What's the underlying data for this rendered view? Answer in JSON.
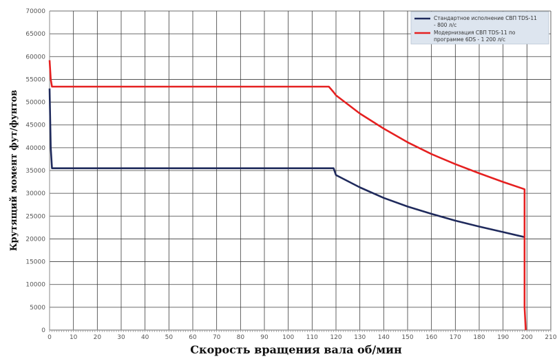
{
  "chart_data": {
    "type": "line",
    "title": "",
    "xlabel": "Скорость вращения вала об/мин",
    "ylabel": "Крутящий момент фут/фунтов",
    "xlim": [
      0,
      210
    ],
    "ylim": [
      0,
      70000
    ],
    "x_ticks": [
      0,
      10,
      20,
      30,
      40,
      50,
      60,
      70,
      80,
      90,
      100,
      110,
      120,
      130,
      140,
      150,
      160,
      170,
      180,
      190,
      200,
      210
    ],
    "y_ticks": [
      0,
      5000,
      10000,
      15000,
      20000,
      25000,
      30000,
      35000,
      40000,
      45000,
      50000,
      55000,
      60000,
      65000,
      70000
    ],
    "grid": true,
    "legend_position": "top-right",
    "series": [
      {
        "name": "Стандартное исполнение СВП TDS-11 - 800 л/с",
        "color": "#1f2a5c",
        "x": [
          0,
          0.5,
          1,
          5,
          20,
          40,
          60,
          80,
          100,
          110,
          119,
          120,
          130,
          140,
          150,
          160,
          170,
          180,
          190,
          199
        ],
        "y": [
          53000,
          40000,
          35500,
          35500,
          35500,
          35500,
          35500,
          35500,
          35500,
          35500,
          35500,
          34000,
          31300,
          29000,
          27100,
          25500,
          24000,
          22700,
          21500,
          20400
        ]
      },
      {
        "name": "Модернизация СВП TDS-11 по программе 6DS - 1 200 л/с",
        "color": "#e52020",
        "x": [
          0,
          0.5,
          1,
          5,
          20,
          40,
          60,
          80,
          100,
          110,
          117,
          118,
          119,
          120,
          130,
          140,
          150,
          160,
          170,
          180,
          190,
          199,
          199,
          199.5
        ],
        "y": [
          59200,
          55000,
          53400,
          53400,
          53400,
          53400,
          53400,
          53400,
          53400,
          53400,
          53400,
          52800,
          52200,
          51500,
          47500,
          44200,
          41200,
          38600,
          36400,
          34400,
          32500,
          30900,
          5000,
          0
        ]
      }
    ]
  }
}
